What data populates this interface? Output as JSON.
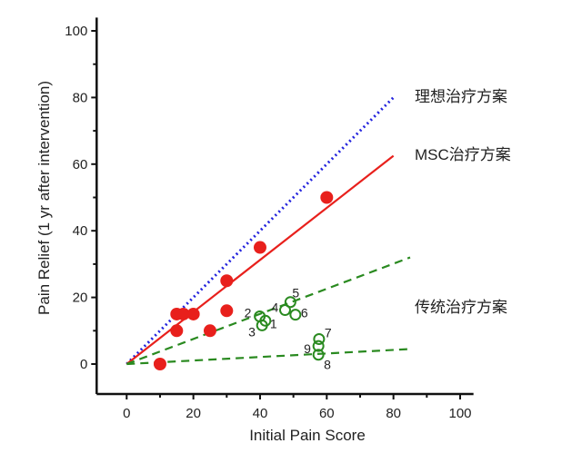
{
  "chart_data": {
    "type": "scatter",
    "xlabel": "Initial Pain Score",
    "ylabel": "Pain Relief (1 yr after intervention)",
    "xlim": [
      -9,
      104
    ],
    "ylim": [
      -9,
      104
    ],
    "xticks": [
      0,
      20,
      40,
      60,
      80,
      100
    ],
    "yticks": [
      0,
      20,
      40,
      60,
      80,
      100
    ],
    "grid": false,
    "colors": {
      "msc": "#e8201c",
      "ideal": "#2222dd",
      "conventional": "#2a8a20"
    },
    "lines": [
      {
        "name": "理想治疗方案",
        "style": "dotted",
        "color": "#2222dd",
        "points": [
          [
            0,
            0
          ],
          [
            80,
            80
          ]
        ]
      },
      {
        "name": "MSC治疗方案",
        "style": "solid",
        "color": "#e8201c",
        "points": [
          [
            0,
            0
          ],
          [
            80,
            62.5
          ]
        ]
      },
      {
        "name": "传统治疗方案",
        "style": "dashed",
        "color": "#2a8a20",
        "points": [
          [
            0,
            0
          ],
          [
            85,
            32
          ]
        ]
      },
      {
        "name": "",
        "style": "dashed",
        "color": "#2a8a20",
        "points": [
          [
            0,
            0
          ],
          [
            85,
            4.5
          ]
        ]
      }
    ],
    "series": [
      {
        "marker": "filled-circle",
        "color": "#e8201c",
        "points": [
          [
            15,
            15
          ],
          [
            17,
            15
          ],
          [
            20,
            15
          ],
          [
            15,
            10
          ],
          [
            25,
            10
          ],
          [
            30,
            25
          ],
          [
            30,
            16
          ],
          [
            40,
            35
          ],
          [
            60,
            50
          ],
          [
            10,
            0
          ]
        ]
      },
      {
        "marker": "open-circle",
        "color": "#2a8a20",
        "points": [
          {
            "label": "1",
            "x": 41.6,
            "y": 13
          },
          {
            "label": "2",
            "x": 39.9,
            "y": 14.3
          },
          {
            "label": "3",
            "x": 40.6,
            "y": 11.6
          },
          {
            "label": "4",
            "x": 47.5,
            "y": 16.2
          },
          {
            "label": "5",
            "x": 49.1,
            "y": 18.6
          },
          {
            "label": "6",
            "x": 50.6,
            "y": 14.8
          },
          {
            "label": "7",
            "x": 57.7,
            "y": 7.5
          },
          {
            "label": "8",
            "x": 57.5,
            "y": 2.8
          },
          {
            "label": "9",
            "x": 57.5,
            "y": 5.4
          }
        ]
      }
    ],
    "annotations": [
      "理想治疗方案",
      "MSC治疗方案",
      "传统治疗方案"
    ]
  }
}
